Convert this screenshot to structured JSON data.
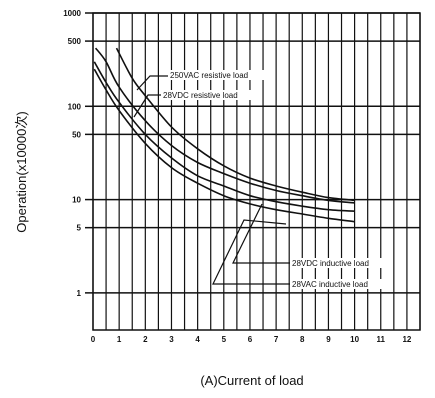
{
  "chart_data": {
    "type": "line",
    "xlabel": "(A)Current of load",
    "ylabel": "Operation(x10000次)",
    "x_ticks": [
      0,
      1,
      2,
      3,
      4,
      5,
      6,
      7,
      8,
      9,
      10,
      11,
      12
    ],
    "y_ticks": [
      1,
      5,
      10,
      50,
      100,
      500,
      1000
    ],
    "xlim": [
      0,
      12.5
    ],
    "ylim": [
      0.4,
      1000
    ],
    "y_scale": "log",
    "grid": true,
    "annotations": [
      "250VAC resistive load",
      "28VDC resistive load",
      "28VDC inductive load",
      "28VAC inductive load"
    ],
    "series": [
      {
        "x": [
          0.1,
          0.5,
          1,
          2,
          3,
          4,
          5,
          6,
          7,
          8,
          9,
          10
        ],
        "y": [
          420,
          300,
          160,
          70,
          38,
          25,
          19,
          15,
          12.5,
          11,
          9.8,
          9.2
        ],
        "color": "#111111"
      },
      {
        "x": [
          0.9,
          1.5,
          2,
          3,
          4,
          5,
          6,
          7,
          8,
          9,
          10
        ],
        "y": [
          420,
          200,
          130,
          60,
          35,
          23,
          17,
          14,
          12,
          10.5,
          9.8
        ],
        "color": "#111111"
      },
      {
        "x": [
          0.05,
          0.5,
          1,
          2,
          3,
          4,
          5,
          6,
          7,
          8,
          9,
          10
        ],
        "y": [
          300,
          180,
          110,
          50,
          28,
          18,
          14,
          11,
          9.5,
          8.5,
          7.8,
          7.5
        ],
        "color": "#111111"
      },
      {
        "x": [
          0.05,
          0.5,
          1,
          2,
          3,
          4,
          5,
          6,
          7,
          8,
          9,
          10
        ],
        "y": [
          250,
          150,
          90,
          40,
          22,
          15,
          11,
          9,
          7.8,
          7,
          6.3,
          5.8
        ],
        "color": "#111111"
      }
    ]
  }
}
